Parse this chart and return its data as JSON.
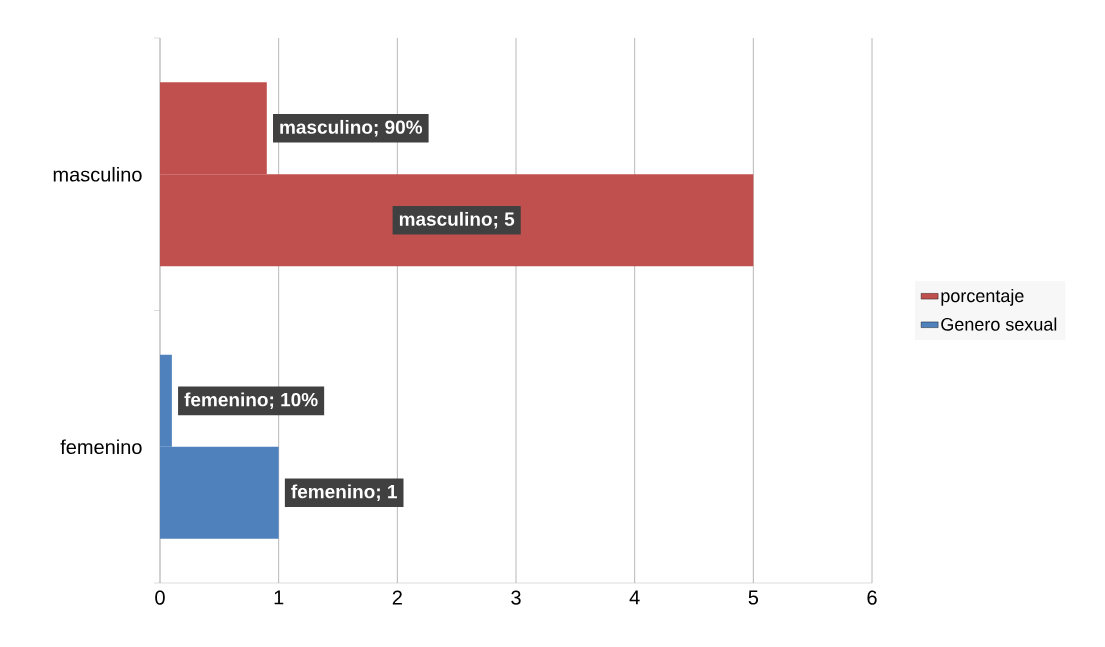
{
  "chart_data": {
    "type": "bar",
    "orientation": "horizontal",
    "categories": [
      "masculino",
      "femenino"
    ],
    "series": [
      {
        "name": "Genero sexual",
        "color": "#4f81bd",
        "colors": [
          "#c0504d",
          "#4f81bd"
        ],
        "values": [
          5,
          1
        ],
        "value_labels": [
          "masculino; 5",
          "femenino; 1"
        ]
      },
      {
        "name": "porcentaje",
        "color": "#c0504d",
        "colors": [
          "#c0504d",
          "#4f81bd"
        ],
        "values": [
          0.9,
          0.1
        ],
        "value_labels": [
          "masculino; 90%",
          "femenino; 10%"
        ]
      }
    ],
    "xlim": [
      0,
      6
    ],
    "xticks": [
      0,
      1,
      2,
      3,
      4,
      5,
      6
    ],
    "grid": "x",
    "legend": "right"
  }
}
